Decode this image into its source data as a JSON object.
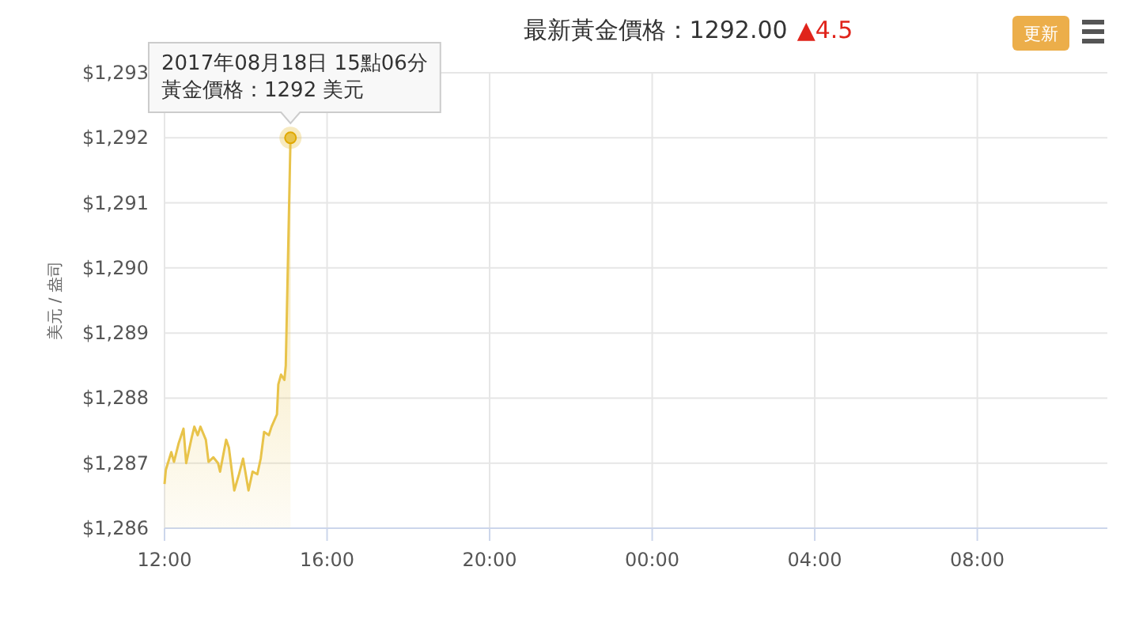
{
  "chart_data": {
    "type": "area",
    "title": "最新黃金價格：1292.00",
    "subtitle": "▲4.5",
    "ylabel": "美元 / 盎司",
    "color": "#e8c34a",
    "grid": true,
    "marker": "none",
    "x": [
      "2017-08-18T12:00",
      "2017-08-18T12:02",
      "2017-08-18T12:10",
      "2017-08-18T12:14",
      "2017-08-18T12:21",
      "2017-08-18T12:28",
      "2017-08-18T12:32",
      "2017-08-18T12:40",
      "2017-08-18T12:44",
      "2017-08-18T12:49",
      "2017-08-18T12:53",
      "2017-08-18T13:01",
      "2017-08-18T13:05",
      "2017-08-18T13:12",
      "2017-08-18T13:19",
      "2017-08-18T13:22",
      "2017-08-18T13:31",
      "2017-08-18T13:35",
      "2017-08-18T13:43",
      "2017-08-18T13:50",
      "2017-08-18T13:56",
      "2017-08-18T14:04",
      "2017-08-18T14:10",
      "2017-08-18T14:17",
      "2017-08-18T14:22",
      "2017-08-18T14:27",
      "2017-08-18T14:34",
      "2017-08-18T14:38",
      "2017-08-18T14:46",
      "2017-08-18T14:48",
      "2017-08-18T14:52",
      "2017-08-18T14:57",
      "2017-08-18T14:59",
      "2017-08-18T15:06"
    ],
    "values": [
      1286.68,
      1286.9,
      1287.17,
      1287.02,
      1287.31,
      1287.53,
      1287.0,
      1287.39,
      1287.56,
      1287.43,
      1287.56,
      1287.36,
      1287.02,
      1287.09,
      1287.0,
      1286.87,
      1287.36,
      1287.24,
      1286.58,
      1286.83,
      1287.07,
      1286.58,
      1286.87,
      1286.83,
      1287.07,
      1287.48,
      1287.43,
      1287.56,
      1287.75,
      1288.21,
      1288.36,
      1288.28,
      1288.5,
      1292
    ],
    "xlim": [
      "2017-08-18T12:00",
      "2017-08-19T11:12"
    ],
    "xticks": [
      {
        "value": "2017-08-18T12:00",
        "label": "12:00"
      },
      {
        "value": "2017-08-18T16:00",
        "label": "16:00"
      },
      {
        "value": "2017-08-18T20:00",
        "label": "20:00"
      },
      {
        "value": "2017-08-19T00:00",
        "label": "00:00"
      },
      {
        "value": "2017-08-19T04:00",
        "label": "04:00"
      },
      {
        "value": "2017-08-19T08:00",
        "label": "08:00"
      }
    ],
    "ylim": [
      1286,
      1293
    ],
    "yticks": [
      {
        "value": 1286,
        "label": "$1,286"
      },
      {
        "value": 1287,
        "label": "$1,287"
      },
      {
        "value": 1288,
        "label": "$1,288"
      },
      {
        "value": 1289,
        "label": "$1,289"
      },
      {
        "value": 1290,
        "label": "$1,290"
      },
      {
        "value": 1291,
        "label": "$1,291"
      },
      {
        "value": 1292,
        "label": "$1,292"
      },
      {
        "value": 1293,
        "label": "$1,293"
      }
    ],
    "annotations": [
      "2017年08月18日 15點06分",
      "黃金價格：1292 美元",
      "更新"
    ]
  }
}
